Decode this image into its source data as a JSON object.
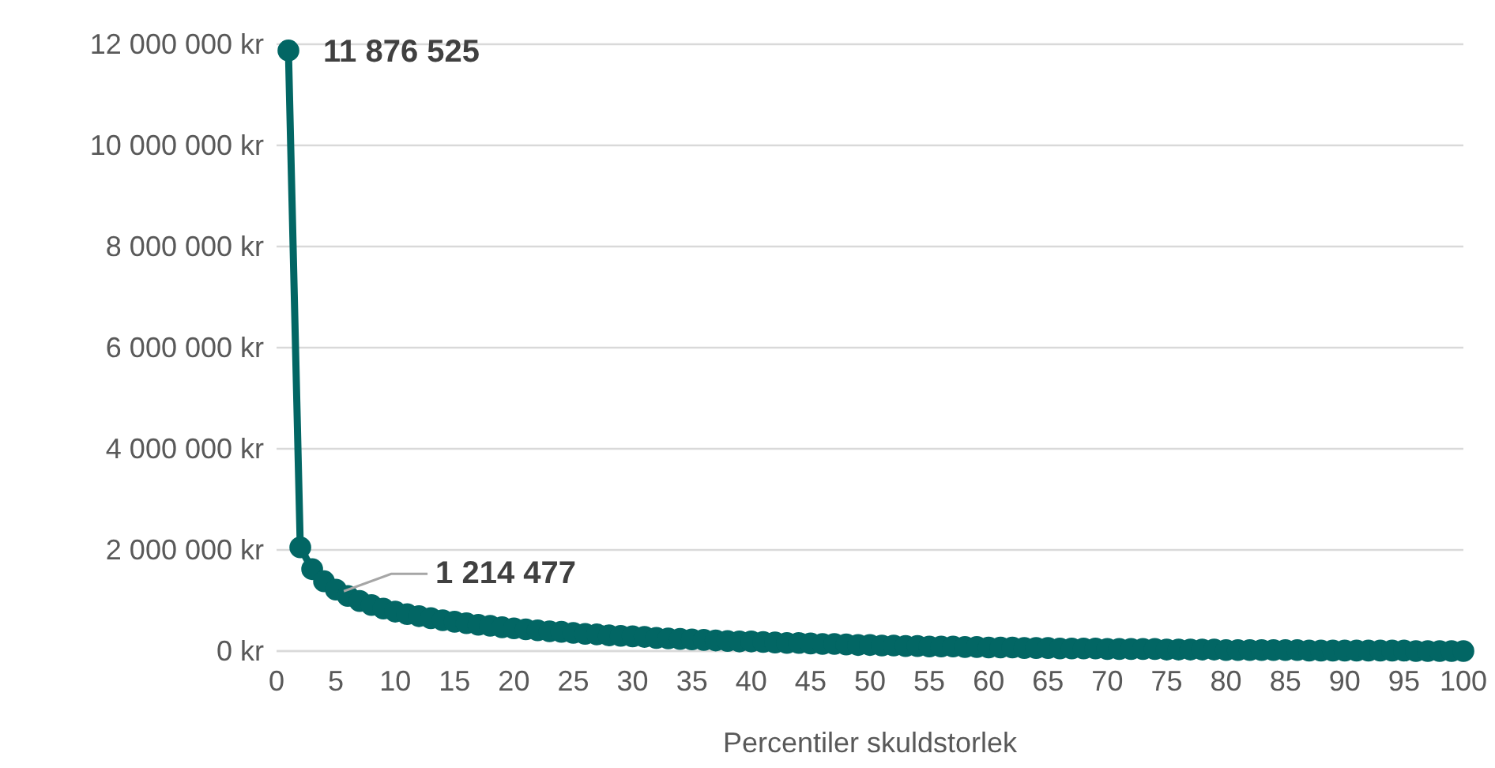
{
  "chart_data": {
    "type": "line",
    "xlabel": "Percentiler skuldstorlek",
    "x": [
      1,
      2,
      3,
      4,
      5,
      6,
      7,
      8,
      9,
      10,
      11,
      12,
      13,
      14,
      15,
      16,
      17,
      18,
      19,
      20,
      21,
      22,
      23,
      24,
      25,
      26,
      27,
      28,
      29,
      30,
      31,
      32,
      33,
      34,
      35,
      36,
      37,
      38,
      39,
      40,
      41,
      42,
      43,
      44,
      45,
      46,
      47,
      48,
      49,
      50,
      51,
      52,
      53,
      54,
      55,
      56,
      57,
      58,
      59,
      60,
      61,
      62,
      63,
      64,
      65,
      66,
      67,
      68,
      69,
      70,
      71,
      72,
      73,
      74,
      75,
      76,
      77,
      78,
      79,
      80,
      81,
      82,
      83,
      84,
      85,
      86,
      87,
      88,
      89,
      90,
      91,
      92,
      93,
      94,
      95,
      96,
      97,
      98,
      99,
      100
    ],
    "series": [
      {
        "color": "#026664",
        "values": [
          11876525,
          2050000,
          1620000,
          1380000,
          1214477,
          1090000,
          990000,
          910000,
          840000,
          780000,
          730000,
          690000,
          650000,
          610000,
          580000,
          550000,
          520000,
          500000,
          470000,
          450000,
          430000,
          410000,
          390000,
          380000,
          360000,
          340000,
          330000,
          310000,
          300000,
          290000,
          280000,
          260000,
          250000,
          240000,
          230000,
          220000,
          210000,
          200000,
          190000,
          190000,
          180000,
          170000,
          160000,
          160000,
          150000,
          140000,
          140000,
          130000,
          120000,
          120000,
          110000,
          110000,
          100000,
          100000,
          90000,
          90000,
          90000,
          80000,
          80000,
          70000,
          70000,
          70000,
          60000,
          60000,
          60000,
          50000,
          50000,
          50000,
          50000,
          40000,
          40000,
          40000,
          40000,
          40000,
          30000,
          30000,
          30000,
          30000,
          30000,
          20000,
          20000,
          20000,
          20000,
          20000,
          20000,
          20000,
          10000,
          10000,
          10000,
          10000,
          10000,
          10000,
          10000,
          10000,
          10000,
          0,
          0,
          0,
          0,
          0
        ],
        "value_labels": [
          "11 876 525",
          null,
          null,
          null,
          "1 214 477",
          null,
          null,
          null,
          null,
          null,
          null,
          null,
          null,
          null,
          null,
          null,
          null,
          null,
          null,
          null,
          null,
          null,
          null,
          null,
          null,
          null,
          null,
          null,
          null,
          null,
          null,
          null,
          null,
          null,
          null,
          null,
          null,
          null,
          null,
          null,
          null,
          null,
          null,
          null,
          null,
          null,
          null,
          null,
          null,
          null,
          null,
          null,
          null,
          null,
          null,
          null,
          null,
          null,
          null,
          null,
          null,
          null,
          null,
          null,
          null,
          null,
          null,
          null,
          null,
          null,
          null,
          null,
          null,
          null,
          null,
          null,
          null,
          null,
          null,
          null,
          null,
          null,
          null,
          null,
          null,
          null,
          null,
          null,
          null,
          null,
          null,
          null,
          null,
          null,
          null,
          null,
          null,
          null,
          null,
          null
        ]
      }
    ],
    "xlim": [
      0,
      100
    ],
    "xticks": [
      0,
      5,
      10,
      15,
      20,
      25,
      30,
      35,
      40,
      45,
      50,
      55,
      60,
      65,
      70,
      75,
      80,
      85,
      90,
      95,
      100
    ],
    "ylim": [
      0,
      12000000
    ],
    "yticks": [
      {
        "value": 0,
        "label": "0 kr"
      },
      {
        "value": 2000000,
        "label": "2 000 000 kr"
      },
      {
        "value": 4000000,
        "label": "4 000 000 kr"
      },
      {
        "value": 6000000,
        "label": "6 000 000 kr"
      },
      {
        "value": 8000000,
        "label": "8 000 000 kr"
      },
      {
        "value": 10000000,
        "label": "10 000 000 kr"
      },
      {
        "value": 12000000,
        "label": "12 000 000 kr"
      }
    ],
    "grid": "y",
    "marker": "circle",
    "line_style": "solid"
  }
}
